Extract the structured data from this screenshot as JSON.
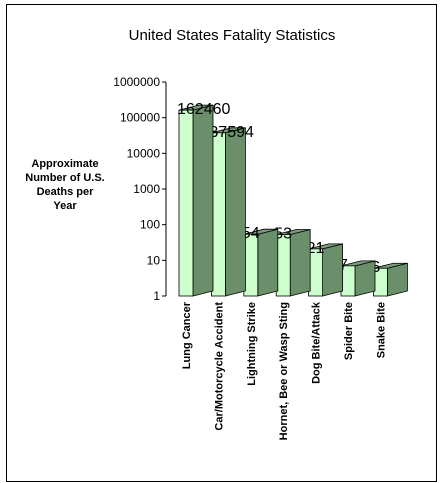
{
  "chart_data": {
    "type": "bar",
    "title": "United States Fatality Statistics",
    "ylabel": [
      "Approximate",
      "Number of U.S.",
      "Deaths per",
      "Year"
    ],
    "xlabel": "",
    "yscale": "log",
    "ylim": [
      1,
      1000000
    ],
    "yticks": [
      "1",
      "10",
      "100",
      "1000",
      "10000",
      "100000",
      "1000000"
    ],
    "categories": [
      "Lung Cancer",
      "Car/Motorcycle Accident",
      "Lightning Strike",
      "Hornet, Bee or Wasp Sting",
      "Dog Bite/Attack",
      "Spider Bite",
      "Snake Bite"
    ],
    "values": [
      162460,
      37594,
      54,
      53,
      21,
      7,
      6
    ],
    "data_labels": [
      "162460",
      "37594",
      "54",
      "53",
      "21",
      "7",
      "6"
    ],
    "grid": false,
    "legend": "none",
    "style": "3d-column"
  },
  "colors": {
    "bar_front": "#ccffcc",
    "bar_side": "#6b8e6b",
    "bar_top": "#7a9c7a",
    "outline": "#000000",
    "frame": "#000000"
  }
}
